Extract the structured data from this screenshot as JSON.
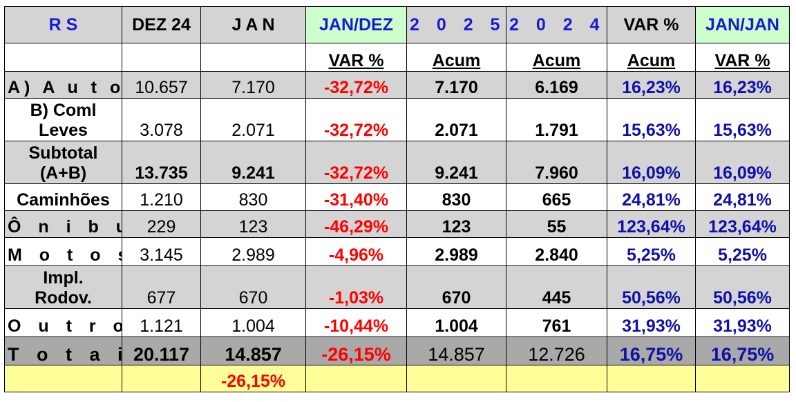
{
  "header": {
    "rs": "R S",
    "dez24": "DEZ 24",
    "jan": "J A N",
    "jandez": "JAN/DEZ",
    "y2025": "2 0 2 5",
    "y2024": "2 0 2 4",
    "var": "VAR %",
    "janjan": "JAN/JAN"
  },
  "subheader": {
    "jandez": "VAR %",
    "y2025": "Acum",
    "y2024": "Acum",
    "var": "Acum",
    "janjan": "VAR %"
  },
  "rows": [
    {
      "label": "A) A u t o s",
      "dez24": "10.657",
      "jan": "7.170",
      "jandez": "-32,72%",
      "y2025": "7.170",
      "y2024": "6.169",
      "var": "16,23%",
      "janjan": "16,23%"
    },
    {
      "label1": "B) Coml",
      "label2": "Leves",
      "dez24": "3.078",
      "jan": "2.071",
      "jandez": "-32,72%",
      "y2025": "2.071",
      "y2024": "1.791",
      "var": "15,63%",
      "janjan": "15,63%"
    },
    {
      "label1": "Subtotal",
      "label2": "(A+B)",
      "dez24": "13.735",
      "jan": "9.241",
      "jandez": "-32,72%",
      "y2025": "9.241",
      "y2024": "7.960",
      "var": "16,09%",
      "janjan": "16,09%"
    },
    {
      "label": "Caminhões",
      "dez24": "1.210",
      "jan": "830",
      "jandez": "-31,40%",
      "y2025": "830",
      "y2024": "665",
      "var": "24,81%",
      "janjan": "24,81%"
    },
    {
      "label": "Ô n i b u s",
      "dez24": "229",
      "jan": "123",
      "jandez": "-46,29%",
      "y2025": "123",
      "y2024": "55",
      "var": "123,64%",
      "janjan": "123,64%"
    },
    {
      "label": "M o t o s",
      "dez24": "3.145",
      "jan": "2.989",
      "jandez": "-4,96%",
      "y2025": "2.989",
      "y2024": "2.840",
      "var": "5,25%",
      "janjan": "5,25%"
    },
    {
      "label1": "Impl.",
      "label2": "Rodov.",
      "dez24": "677",
      "jan": "670",
      "jandez": "-1,03%",
      "y2025": "670",
      "y2024": "445",
      "var": "50,56%",
      "janjan": "50,56%"
    },
    {
      "label": "O u t r o s",
      "dez24": "1.121",
      "jan": "1.004",
      "jandez": "-10,44%",
      "y2025": "1.004",
      "y2024": "761",
      "var": "31,93%",
      "janjan": "31,93%"
    }
  ],
  "totals": {
    "label": "T o t a i s",
    "dez24": "20.117",
    "jan": "14.857",
    "jandez": "-26,15%",
    "y2025": "14.857",
    "y2024": "12.726",
    "var": "16,75%",
    "janjan": "16,75%"
  },
  "footer": {
    "jan": "-26,15%"
  }
}
